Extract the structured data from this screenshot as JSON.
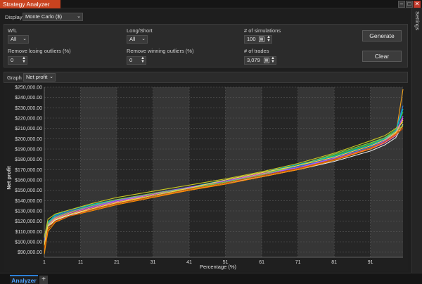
{
  "window": {
    "title": "Strategy Analyzer"
  },
  "sidebar": {
    "settings_label": "Settings"
  },
  "display": {
    "label": "Display",
    "value": "Monte Carlo ($)"
  },
  "filters": {
    "wl_label": "W/L",
    "wl_value": "All",
    "long_short_label": "Long/Short",
    "long_short_value": "All",
    "num_sims_label": "# of simulations",
    "num_sims_value": "100",
    "remove_losing_label": "Remove losing outliers (%)",
    "remove_losing_value": "0",
    "remove_winning_label": "Remove winning outliers (%)",
    "remove_winning_value": "0",
    "num_trades_label": "# of trades",
    "num_trades_value": "3,079"
  },
  "buttons": {
    "generate": "Generate",
    "clear": "Clear"
  },
  "graph": {
    "label": "Graph",
    "value": "Net profit"
  },
  "tabs": {
    "active": "Analyzer",
    "add": "+"
  },
  "chart_data": {
    "type": "line",
    "title": "",
    "xlabel": "Percentage (%)",
    "ylabel": "Net profit",
    "xlim": [
      1,
      100
    ],
    "ylim": [
      85000,
      250000
    ],
    "x_ticks": [
      1,
      11,
      21,
      31,
      41,
      51,
      61,
      71,
      81,
      91
    ],
    "x_tick_labels": [
      "1",
      "11",
      "21",
      "31",
      "41",
      "51",
      "61",
      "71",
      "81",
      "91"
    ],
    "y_ticks": [
      90000,
      100000,
      110000,
      120000,
      130000,
      140000,
      150000,
      160000,
      170000,
      180000,
      190000,
      200000,
      210000,
      220000,
      230000,
      240000,
      250000
    ],
    "y_tick_labels": [
      "$90,000.00",
      "$100,000.00",
      "$110,000.00",
      "$120,000.00",
      "$130,000.00",
      "$140,000.00",
      "$150,000.00",
      "$160,000.00",
      "$170,000.00",
      "$180,000.00",
      "$190,000.00",
      "$200,000.00",
      "$210,000.00",
      "$220,000.00",
      "$230,000.00",
      "$240,000.00",
      "$250,000.00"
    ],
    "x": [
      1,
      2,
      4,
      8,
      14,
      21,
      31,
      41,
      51,
      61,
      71,
      81,
      91,
      95,
      98,
      100
    ],
    "series": [
      {
        "color": "#f2a21b",
        "values": [
          88000,
          112000,
          122000,
          126000,
          132000,
          138000,
          144000,
          150000,
          157000,
          164000,
          171000,
          180000,
          191000,
          197000,
          204000,
          248000
        ]
      },
      {
        "color": "#2f7de1",
        "values": [
          102000,
          118000,
          125000,
          130000,
          135000,
          140000,
          146000,
          152000,
          158000,
          165000,
          173000,
          181000,
          192000,
          199000,
          208000,
          232000
        ]
      },
      {
        "color": "#3fbf3f",
        "values": [
          96000,
          116000,
          124000,
          129000,
          134000,
          139000,
          145000,
          151000,
          158000,
          166000,
          174000,
          184000,
          195000,
          201000,
          209000,
          226000
        ]
      },
      {
        "color": "#ff66cc",
        "values": [
          99000,
          117000,
          123000,
          128000,
          133000,
          139000,
          146000,
          153000,
          159000,
          166000,
          172000,
          180000,
          190000,
          196000,
          203000,
          220000
        ]
      },
      {
        "color": "#e8e8e8",
        "values": [
          100000,
          115000,
          121000,
          126000,
          131000,
          137000,
          144000,
          151000,
          157000,
          163000,
          170000,
          178000,
          188000,
          194000,
          201000,
          214000
        ]
      },
      {
        "color": "#ff8c00",
        "values": [
          90000,
          110000,
          119000,
          125000,
          130000,
          136000,
          143000,
          150000,
          156000,
          163000,
          170000,
          179000,
          190000,
          197000,
          205000,
          212000
        ]
      },
      {
        "color": "#00c8c8",
        "values": [
          105000,
          119000,
          126000,
          131000,
          136000,
          141000,
          147000,
          153000,
          160000,
          167000,
          175000,
          183000,
          194000,
          200000,
          207000,
          229000
        ]
      },
      {
        "color": "#c8c820",
        "values": [
          104000,
          122000,
          127000,
          131000,
          137000,
          143000,
          149000,
          155000,
          161000,
          168000,
          176000,
          186000,
          198000,
          203000,
          210000,
          216000
        ]
      },
      {
        "color": "#9b59ff",
        "values": [
          101000,
          117000,
          124000,
          129000,
          134000,
          140000,
          147000,
          153000,
          159000,
          165000,
          172000,
          181000,
          191000,
          198000,
          206000,
          222000
        ]
      },
      {
        "color": "#d35400",
        "values": [
          94000,
          113000,
          120000,
          125000,
          131000,
          137000,
          144000,
          151000,
          157000,
          164000,
          171000,
          180000,
          191000,
          197000,
          204000,
          210000
        ]
      },
      {
        "color": "#7ec850",
        "values": [
          98000,
          118000,
          124000,
          129000,
          135000,
          141000,
          147000,
          152000,
          158000,
          165000,
          174000,
          185000,
          196000,
          201000,
          207000,
          213000
        ]
      },
      {
        "color": "#ffd24d",
        "values": [
          97000,
          116000,
          122000,
          127000,
          132000,
          138000,
          145000,
          152000,
          160000,
          167000,
          174000,
          182000,
          193000,
          199000,
          206000,
          218000
        ]
      }
    ]
  }
}
